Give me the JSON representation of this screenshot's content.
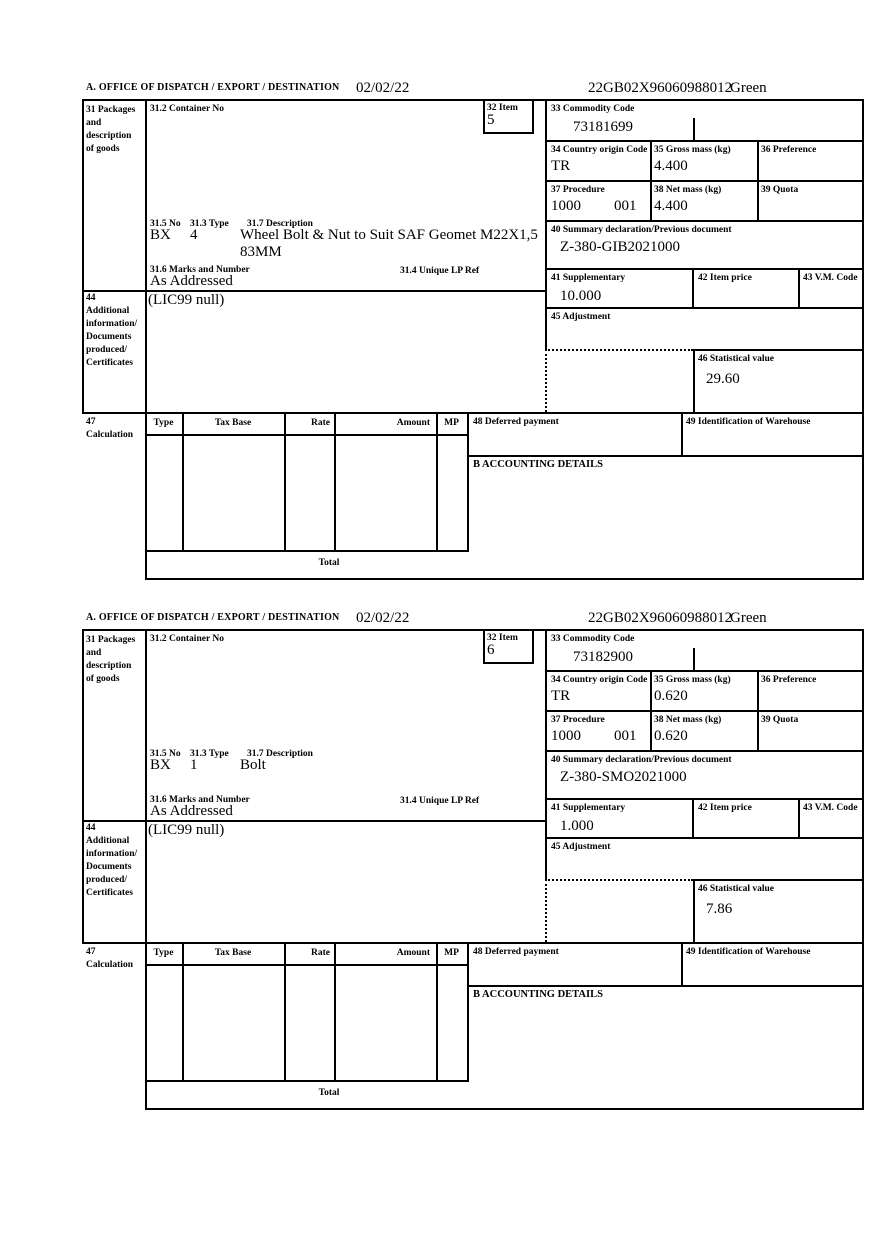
{
  "doc": {
    "header_label": "A.  OFFICE OF DISPATCH / EXPORT / DESTINATION",
    "labels": {
      "b31": "31 Packages\nand\ndescription\nof goods",
      "b31_2": "31.2 Container No",
      "b32": "32 Item",
      "b33": "33 Commodity Code",
      "b34": "34 Country origin Code",
      "b35": "35 Gross mass (kg)",
      "b36": "36 Preference",
      "b37": "37 Procedure",
      "b38": "38 Net mass (kg)",
      "b39": "39 Quota",
      "b31_5": "31.5 No",
      "b31_3": "31.3 Type",
      "b31_7": "31.7 Description",
      "b40": "40 Summary declaration/Previous document",
      "b31_6": "31.6 Marks and Number",
      "b31_4": "31.4 Unique LP Ref",
      "b41": "41 Supplementary",
      "b42": "42 Item price",
      "b43": "43 V.M. Code",
      "b44": "44\nAdditional\ninformation/\nDocuments\nproduced/\nCertificates",
      "b45": "45 Adjustment",
      "b46": "46 Statistical value",
      "b47": "47\nCalculation",
      "tax_type": "Type",
      "tax_base": "Tax Base",
      "tax_rate": "Rate",
      "tax_amount": "Amount",
      "tax_mp": "MP",
      "b48": "48 Deferred payment",
      "b49": "49 Identification of Warehouse",
      "b_accounting": "B ACCOUNTING DETAILS",
      "total": "Total"
    }
  },
  "sections": [
    {
      "date": "02/02/22",
      "reference": "22GB02X96060988012",
      "status": "Green",
      "item_no": "5",
      "commodity_code": "73181699",
      "country_origin": "TR",
      "gross_mass": "4.400",
      "procedure_1": "1000",
      "procedure_2": "001",
      "net_mass": "4.400",
      "package_no": "BX",
      "package_type": "4",
      "description": "Wheel Bolt & Nut to Suit SAF Geomet M22X1,5\n83MM",
      "previous_document": "Z-380-GIB2021000",
      "marks": "As Addressed",
      "supplementary": "10.000",
      "additional_info": "(LIC99 null)",
      "statistical_value": "29.60"
    },
    {
      "date": "02/02/22",
      "reference": "22GB02X96060988012",
      "status": "Green",
      "item_no": "6",
      "commodity_code": "73182900",
      "country_origin": "TR",
      "gross_mass": "0.620",
      "procedure_1": "1000",
      "procedure_2": "001",
      "net_mass": "0.620",
      "package_no": "BX",
      "package_type": "1",
      "description": "Bolt",
      "previous_document": "Z-380-SMO2021000",
      "marks": "As Addressed",
      "supplementary": "1.000",
      "additional_info": "(LIC99 null)",
      "statistical_value": "7.86"
    }
  ]
}
